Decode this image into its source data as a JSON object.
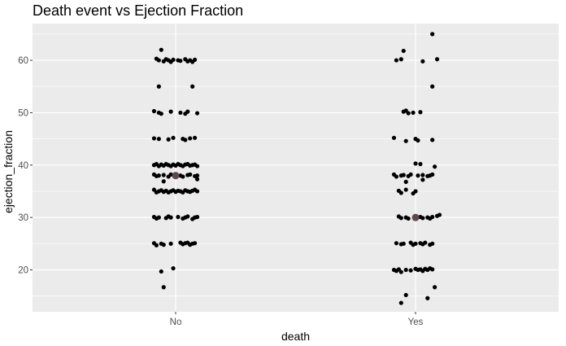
{
  "chart_data": {
    "type": "scatter",
    "title": "Death event vs Ejection Fraction",
    "xlabel": "death",
    "ylabel": "ejection_fraction",
    "categories": [
      "No",
      "Yes"
    ],
    "ylim": [
      12,
      67
    ],
    "yticks": [
      20,
      30,
      40,
      50,
      60
    ],
    "grid": true,
    "colors": {
      "panel": "#ebebeb",
      "grid": "#ffffff",
      "point": "#000000",
      "mean_point": "#5a4a4a",
      "tick_label": "#4d4d4d"
    },
    "series": [
      {
        "category": "No",
        "points": [
          {
            "dx": -0.06,
            "y": 62
          },
          {
            "dx": -0.08,
            "y": 60.3
          },
          {
            "dx": -0.07,
            "y": 60
          },
          {
            "dx": -0.05,
            "y": 59.8
          },
          {
            "dx": -0.04,
            "y": 60.2
          },
          {
            "dx": -0.03,
            "y": 60
          },
          {
            "dx": -0.02,
            "y": 59.7
          },
          {
            "dx": -0.01,
            "y": 60.1
          },
          {
            "dx": 0.01,
            "y": 60
          },
          {
            "dx": 0.02,
            "y": 59.9
          },
          {
            "dx": 0.04,
            "y": 60.2
          },
          {
            "dx": 0.05,
            "y": 59.8
          },
          {
            "dx": 0.06,
            "y": 60
          },
          {
            "dx": 0.07,
            "y": 59.7
          },
          {
            "dx": 0.08,
            "y": 60.1
          },
          {
            "dx": -0.07,
            "y": 55
          },
          {
            "dx": 0.07,
            "y": 55
          },
          {
            "dx": -0.09,
            "y": 50.3
          },
          {
            "dx": -0.07,
            "y": 50
          },
          {
            "dx": -0.06,
            "y": 49.8
          },
          {
            "dx": -0.02,
            "y": 50.2
          },
          {
            "dx": 0.02,
            "y": 50
          },
          {
            "dx": 0.04,
            "y": 49.8
          },
          {
            "dx": 0.05,
            "y": 50.2
          },
          {
            "dx": 0.09,
            "y": 49.9
          },
          {
            "dx": -0.09,
            "y": 45.1
          },
          {
            "dx": -0.07,
            "y": 45
          },
          {
            "dx": -0.03,
            "y": 44.9
          },
          {
            "dx": -0.01,
            "y": 45.2
          },
          {
            "dx": 0.03,
            "y": 45
          },
          {
            "dx": 0.04,
            "y": 44.8
          },
          {
            "dx": 0.06,
            "y": 45.1
          },
          {
            "dx": 0.08,
            "y": 45.2
          },
          {
            "dx": -0.09,
            "y": 40
          },
          {
            "dx": -0.08,
            "y": 40.2
          },
          {
            "dx": -0.07,
            "y": 39.8
          },
          {
            "dx": -0.06,
            "y": 40.1
          },
          {
            "dx": -0.05,
            "y": 39.9
          },
          {
            "dx": -0.04,
            "y": 40.2
          },
          {
            "dx": -0.03,
            "y": 40
          },
          {
            "dx": -0.02,
            "y": 39.8
          },
          {
            "dx": -0.01,
            "y": 40.1
          },
          {
            "dx": 0.0,
            "y": 39.9
          },
          {
            "dx": 0.01,
            "y": 40.2
          },
          {
            "dx": 0.02,
            "y": 40
          },
          {
            "dx": 0.03,
            "y": 39.8
          },
          {
            "dx": 0.04,
            "y": 40.1
          },
          {
            "dx": 0.05,
            "y": 40.2
          },
          {
            "dx": 0.06,
            "y": 39.9
          },
          {
            "dx": 0.07,
            "y": 40
          },
          {
            "dx": 0.08,
            "y": 40.1
          },
          {
            "dx": 0.09,
            "y": 39.8
          },
          {
            "dx": -0.09,
            "y": 38.2
          },
          {
            "dx": -0.08,
            "y": 37.9
          },
          {
            "dx": -0.07,
            "y": 38
          },
          {
            "dx": -0.05,
            "y": 38.1
          },
          {
            "dx": -0.03,
            "y": 37.8
          },
          {
            "dx": -0.02,
            "y": 38.2
          },
          {
            "dx": 0.02,
            "y": 38
          },
          {
            "dx": 0.03,
            "y": 37.8
          },
          {
            "dx": 0.05,
            "y": 38.1
          },
          {
            "dx": 0.06,
            "y": 38.2
          },
          {
            "dx": 0.08,
            "y": 37.9
          },
          {
            "dx": 0.09,
            "y": 38
          },
          {
            "dx": -0.05,
            "y": 36.9
          },
          {
            "dx": 0.09,
            "y": 37.3
          },
          {
            "dx": -0.09,
            "y": 35.3
          },
          {
            "dx": -0.08,
            "y": 34.8
          },
          {
            "dx": -0.07,
            "y": 35
          },
          {
            "dx": -0.06,
            "y": 35.2
          },
          {
            "dx": -0.05,
            "y": 34.9
          },
          {
            "dx": -0.04,
            "y": 35.1
          },
          {
            "dx": -0.03,
            "y": 34.8
          },
          {
            "dx": -0.02,
            "y": 35
          },
          {
            "dx": -0.01,
            "y": 35.2
          },
          {
            "dx": 0.0,
            "y": 34.9
          },
          {
            "dx": 0.01,
            "y": 35.1
          },
          {
            "dx": 0.02,
            "y": 35
          },
          {
            "dx": 0.03,
            "y": 34.8
          },
          {
            "dx": 0.04,
            "y": 35.2
          },
          {
            "dx": 0.05,
            "y": 35
          },
          {
            "dx": 0.06,
            "y": 34.9
          },
          {
            "dx": 0.07,
            "y": 35.1
          },
          {
            "dx": 0.08,
            "y": 35.3
          },
          {
            "dx": 0.09,
            "y": 35
          },
          {
            "dx": -0.09,
            "y": 30.1
          },
          {
            "dx": -0.08,
            "y": 29.8
          },
          {
            "dx": -0.07,
            "y": 30
          },
          {
            "dx": -0.04,
            "y": 29.9
          },
          {
            "dx": -0.03,
            "y": 30.2
          },
          {
            "dx": -0.02,
            "y": 30
          },
          {
            "dx": 0.01,
            "y": 30.1
          },
          {
            "dx": 0.03,
            "y": 29.8
          },
          {
            "dx": 0.04,
            "y": 30
          },
          {
            "dx": 0.05,
            "y": 30.2
          },
          {
            "dx": 0.07,
            "y": 29.7
          },
          {
            "dx": 0.08,
            "y": 30
          },
          {
            "dx": 0.09,
            "y": 30.1
          },
          {
            "dx": -0.09,
            "y": 25.1
          },
          {
            "dx": -0.08,
            "y": 24.7
          },
          {
            "dx": -0.06,
            "y": 25
          },
          {
            "dx": -0.05,
            "y": 24.8
          },
          {
            "dx": -0.02,
            "y": 25
          },
          {
            "dx": 0.02,
            "y": 25.2
          },
          {
            "dx": 0.03,
            "y": 24.9
          },
          {
            "dx": 0.04,
            "y": 25.1
          },
          {
            "dx": 0.05,
            "y": 25.2
          },
          {
            "dx": 0.06,
            "y": 24.8
          },
          {
            "dx": 0.07,
            "y": 25
          },
          {
            "dx": 0.08,
            "y": 25.1
          },
          {
            "dx": -0.06,
            "y": 19.7
          },
          {
            "dx": -0.01,
            "y": 20.3
          },
          {
            "dx": -0.05,
            "y": 16.7
          }
        ],
        "mean": 38
      },
      {
        "category": "Yes",
        "points": [
          {
            "dx": 0.07,
            "y": 65
          },
          {
            "dx": -0.05,
            "y": 61.8
          },
          {
            "dx": -0.08,
            "y": 60
          },
          {
            "dx": -0.06,
            "y": 60.2
          },
          {
            "dx": 0.03,
            "y": 59.8
          },
          {
            "dx": 0.09,
            "y": 60.2
          },
          {
            "dx": 0.07,
            "y": 55
          },
          {
            "dx": -0.05,
            "y": 50.2
          },
          {
            "dx": -0.04,
            "y": 50.4
          },
          {
            "dx": -0.03,
            "y": 49.9
          },
          {
            "dx": -0.01,
            "y": 50
          },
          {
            "dx": 0.02,
            "y": 50.1
          },
          {
            "dx": -0.09,
            "y": 45.2
          },
          {
            "dx": -0.04,
            "y": 44.6
          },
          {
            "dx": 0.0,
            "y": 45
          },
          {
            "dx": 0.01,
            "y": 44.7
          },
          {
            "dx": 0.07,
            "y": 44.8
          },
          {
            "dx": 0.0,
            "y": 40.3
          },
          {
            "dx": 0.02,
            "y": 40.2
          },
          {
            "dx": 0.08,
            "y": 39.7
          },
          {
            "dx": -0.09,
            "y": 38.2
          },
          {
            "dx": -0.08,
            "y": 37.8
          },
          {
            "dx": -0.06,
            "y": 38
          },
          {
            "dx": -0.05,
            "y": 38.1
          },
          {
            "dx": -0.03,
            "y": 37.9
          },
          {
            "dx": -0.02,
            "y": 38.2
          },
          {
            "dx": 0.01,
            "y": 38
          },
          {
            "dx": 0.03,
            "y": 38.1
          },
          {
            "dx": 0.05,
            "y": 37.9
          },
          {
            "dx": 0.06,
            "y": 38
          },
          {
            "dx": 0.07,
            "y": 38.2
          },
          {
            "dx": -0.04,
            "y": 36.8
          },
          {
            "dx": 0.03,
            "y": 37.2
          },
          {
            "dx": -0.07,
            "y": 35.1
          },
          {
            "dx": -0.06,
            "y": 34.7
          },
          {
            "dx": -0.04,
            "y": 35.3
          },
          {
            "dx": 0.0,
            "y": 35
          },
          {
            "dx": -0.01,
            "y": 34.6
          },
          {
            "dx": -0.07,
            "y": 30.2
          },
          {
            "dx": -0.06,
            "y": 29.9
          },
          {
            "dx": -0.04,
            "y": 30
          },
          {
            "dx": -0.03,
            "y": 29.8
          },
          {
            "dx": 0.02,
            "y": 30.1
          },
          {
            "dx": 0.03,
            "y": 29.9
          },
          {
            "dx": 0.05,
            "y": 30
          },
          {
            "dx": 0.06,
            "y": 29.8
          },
          {
            "dx": 0.07,
            "y": 30.1
          },
          {
            "dx": 0.09,
            "y": 30.3
          },
          {
            "dx": 0.1,
            "y": 30.5
          },
          {
            "dx": -0.08,
            "y": 25.1
          },
          {
            "dx": -0.06,
            "y": 24.9
          },
          {
            "dx": -0.05,
            "y": 25
          },
          {
            "dx": -0.02,
            "y": 25.2
          },
          {
            "dx": -0.01,
            "y": 24.8
          },
          {
            "dx": 0.0,
            "y": 25
          },
          {
            "dx": 0.02,
            "y": 25.1
          },
          {
            "dx": 0.03,
            "y": 24.9
          },
          {
            "dx": 0.04,
            "y": 25.2
          },
          {
            "dx": 0.06,
            "y": 24.8
          },
          {
            "dx": 0.07,
            "y": 25
          },
          {
            "dx": -0.09,
            "y": 20
          },
          {
            "dx": -0.08,
            "y": 19.8
          },
          {
            "dx": -0.07,
            "y": 20.1
          },
          {
            "dx": -0.06,
            "y": 19.6
          },
          {
            "dx": -0.04,
            "y": 20
          },
          {
            "dx": -0.02,
            "y": 19.9
          },
          {
            "dx": 0.0,
            "y": 20.2
          },
          {
            "dx": 0.01,
            "y": 20
          },
          {
            "dx": 0.02,
            "y": 20.1
          },
          {
            "dx": 0.03,
            "y": 19.8
          },
          {
            "dx": 0.04,
            "y": 20.2
          },
          {
            "dx": 0.05,
            "y": 20
          },
          {
            "dx": 0.06,
            "y": 20.3
          },
          {
            "dx": 0.07,
            "y": 20.1
          },
          {
            "dx": 0.08,
            "y": 16.7
          },
          {
            "dx": -0.04,
            "y": 15.2
          },
          {
            "dx": 0.05,
            "y": 14.6
          },
          {
            "dx": -0.06,
            "y": 13.7
          }
        ],
        "mean": 30
      }
    ]
  }
}
